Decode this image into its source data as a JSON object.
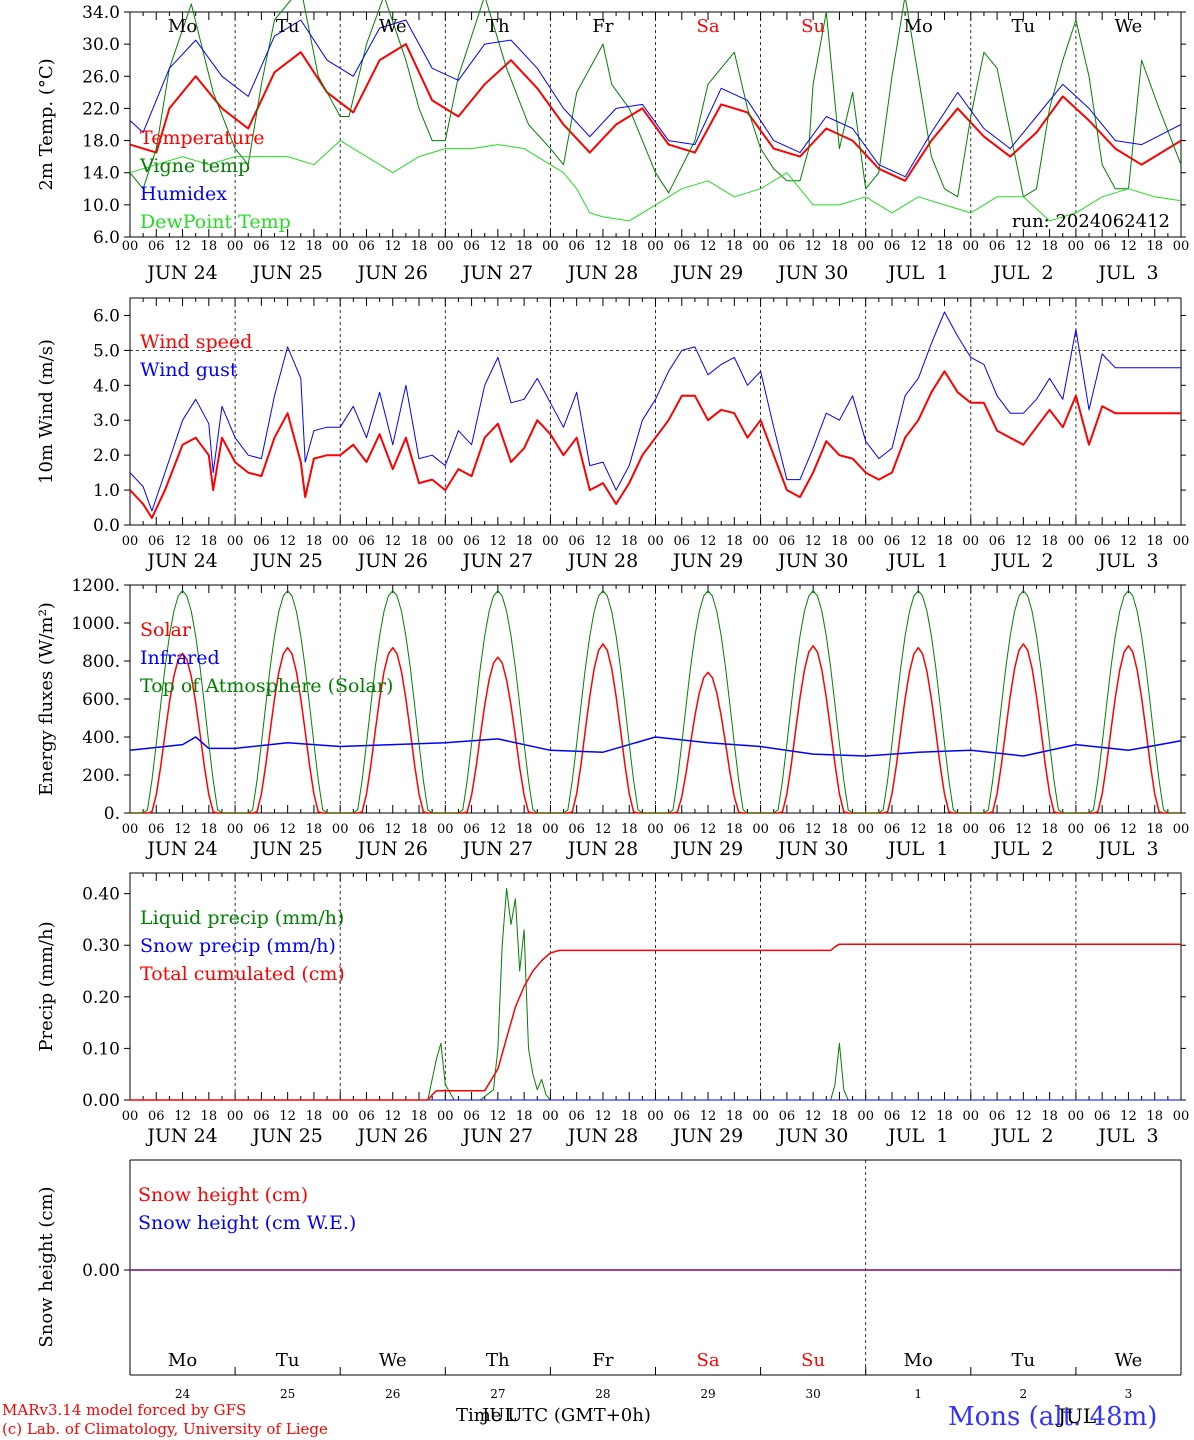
{
  "colors": {
    "red": "#ff0000",
    "green": "#008000",
    "lightgreen": "#22dd22",
    "blue": "#0000ff",
    "purple": "#800080",
    "title_blue": "#3333ff",
    "black": "#000000"
  },
  "days": {
    "dates": [
      "JUN 24",
      "JUN 25",
      "JUN 26",
      "JUN 27",
      "JUN 28",
      "JUN 29",
      "JUN 30",
      "JUL  1",
      "JUL  2",
      "JUL  3"
    ],
    "weekdays": [
      "Mo",
      "Tu",
      "We",
      "Th",
      "Fr",
      "Sa",
      "Su",
      "Mo",
      "Tu",
      "We"
    ],
    "weekend": [
      false,
      false,
      false,
      false,
      false,
      true,
      true,
      false,
      false,
      false
    ],
    "hour_labels": [
      "00",
      "06",
      "12",
      "18"
    ],
    "end_label": "00",
    "bottom_numbers": [
      "24",
      "25",
      "26",
      "27",
      "28",
      "29",
      "30",
      "1",
      "2",
      "3"
    ]
  },
  "footer": {
    "model_line": "MARv3.14 model forced by GFS",
    "credit_line": "(c) Lab. of Climatology, University of Liege",
    "axis_title": "Time UTC (GMT+0h)",
    "overprint": "JUL",
    "station": "Mons (alt. 48m)"
  },
  "chart_data": [
    {
      "type": "line",
      "id": "temperature",
      "ylabel": "2m Temp. (°C)",
      "ylim": [
        6,
        34
      ],
      "yticks": [
        "6.0",
        "10.0",
        "14.0",
        "18.0",
        "22.0",
        "26.0",
        "30.0",
        "34.0"
      ],
      "run_label": "run: 2024062412",
      "x_unit": "hours since JUN 24 00 UTC",
      "series": [
        {
          "name": "Temperature",
          "color": "#ff0000",
          "width": 2,
          "x": [
            0,
            6,
            9,
            15,
            21,
            27,
            33,
            39,
            45,
            51,
            57,
            63,
            69,
            75,
            81,
            87,
            93,
            99,
            105,
            111,
            117,
            123,
            129,
            135,
            141,
            147,
            153,
            159,
            165,
            171,
            177,
            183,
            189,
            195,
            201,
            207,
            213,
            219,
            225,
            231,
            240
          ],
          "y": [
            17.5,
            16.5,
            22,
            26,
            22,
            19.5,
            26.5,
            29,
            24,
            21.5,
            28,
            30,
            23,
            21,
            25,
            28,
            24.5,
            20,
            16.5,
            20,
            22,
            17.5,
            16.5,
            22.5,
            21.5,
            17,
            16,
            19.5,
            18,
            14.5,
            13,
            18,
            22,
            18.5,
            16,
            19,
            23.5,
            20.5,
            17,
            15,
            18
          ]
        },
        {
          "name": "Vigne temp",
          "color": "#008000",
          "width": 1,
          "x": [
            0,
            3,
            6,
            9,
            14,
            19,
            24,
            27,
            30,
            33,
            39,
            43,
            48,
            50,
            54,
            58,
            63,
            66,
            69,
            72,
            75,
            78,
            81,
            86,
            91,
            96,
            99,
            102,
            108,
            110,
            114,
            117,
            120,
            123,
            129,
            132,
            138,
            141,
            144,
            147,
            150,
            153,
            155,
            156,
            159,
            162,
            165,
            168,
            171,
            174,
            177,
            180,
            183,
            186,
            189,
            192,
            195,
            198,
            204,
            207,
            210,
            213,
            216,
            219,
            222,
            225,
            228,
            231,
            235,
            240
          ],
          "y": [
            14,
            12,
            17,
            27,
            35,
            24,
            17,
            15,
            25,
            33,
            37,
            26,
            21,
            21,
            30,
            36,
            28,
            22,
            18,
            18,
            26,
            31,
            36,
            27,
            20,
            17,
            15,
            24,
            30,
            25,
            22,
            18,
            14,
            11.5,
            18,
            25,
            29,
            22,
            17,
            14.5,
            13,
            13,
            17,
            25,
            34,
            17,
            24,
            12,
            14,
            26,
            36,
            26,
            16,
            12,
            11,
            21,
            29,
            27,
            11,
            12,
            22,
            28,
            33,
            26,
            15,
            12,
            12,
            28,
            22,
            15
          ]
        },
        {
          "name": "Humidex",
          "color": "#0000ff",
          "width": 1,
          "x": [
            0,
            3,
            9,
            15,
            21,
            27,
            33,
            39,
            45,
            51,
            57,
            63,
            69,
            75,
            81,
            87,
            93,
            99,
            105,
            111,
            117,
            123,
            129,
            135,
            141,
            147,
            153,
            159,
            165,
            171,
            177,
            183,
            189,
            195,
            201,
            207,
            213,
            219,
            225,
            231,
            240
          ],
          "y": [
            20.5,
            19,
            27,
            30.5,
            26,
            23.5,
            31,
            33,
            28,
            26,
            32,
            33,
            27,
            25.5,
            30,
            30.5,
            27,
            22,
            18.5,
            22,
            22.5,
            18,
            17.5,
            24.5,
            23,
            18,
            16.5,
            21,
            19.5,
            15,
            13.5,
            19,
            24,
            19.5,
            17,
            21,
            25,
            22,
            18,
            17.5,
            20
          ]
        },
        {
          "name": "DewPoint Temp",
          "color": "#22dd22",
          "width": 1,
          "x": [
            0,
            6,
            12,
            18,
            24,
            30,
            36,
            42,
            48,
            51,
            54,
            60,
            66,
            72,
            78,
            84,
            90,
            96,
            99,
            102,
            105,
            108,
            114,
            120,
            126,
            132,
            138,
            144,
            150,
            156,
            162,
            168,
            171,
            174,
            180,
            186,
            192,
            198,
            204,
            210,
            216,
            222,
            228,
            234,
            240
          ],
          "y": [
            14,
            15,
            16,
            15,
            16,
            16,
            16,
            15,
            18,
            17,
            16,
            14,
            16,
            17,
            17,
            17.5,
            17,
            15,
            14,
            12,
            9,
            8.5,
            8,
            10,
            12,
            13,
            11,
            12,
            14,
            10,
            10,
            11,
            10,
            9,
            11,
            10,
            9,
            11,
            11,
            8,
            9,
            11,
            12,
            11,
            10.5
          ]
        }
      ]
    },
    {
      "type": "line",
      "id": "wind",
      "ylabel": "10m Wind (m/s)",
      "ylim": [
        0,
        6.5
      ],
      "yticks": [
        "0.0",
        "1.0",
        "2.0",
        "3.0",
        "4.0",
        "5.0",
        "6.0"
      ],
      "reference_line": 5.0,
      "x_unit": "hours since JUN 24 00 UTC",
      "series": [
        {
          "name": "Wind speed",
          "color": "#ff0000",
          "width": 2,
          "x": [
            0,
            3,
            5,
            8,
            12,
            15,
            18,
            19,
            21,
            24,
            27,
            30,
            33,
            36,
            39,
            40,
            42,
            45,
            48,
            51,
            54,
            57,
            60,
            63,
            66,
            69,
            72,
            75,
            78,
            81,
            84,
            87,
            90,
            93,
            96,
            99,
            102,
            105,
            108,
            111,
            114,
            117,
            120,
            123,
            126,
            129,
            132,
            135,
            138,
            141,
            144,
            147,
            150,
            153,
            156,
            159,
            162,
            165,
            168,
            171,
            174,
            177,
            180,
            183,
            186,
            189,
            192,
            195,
            198,
            201,
            204,
            207,
            210,
            213,
            216,
            219,
            222,
            225,
            228,
            231,
            234,
            237,
            240
          ],
          "y": [
            1.0,
            0.6,
            0.2,
            1.0,
            2.3,
            2.5,
            2.0,
            1.0,
            2.5,
            1.8,
            1.5,
            1.4,
            2.5,
            3.2,
            1.8,
            0.8,
            1.9,
            2.0,
            2.0,
            2.3,
            1.8,
            2.6,
            1.6,
            2.5,
            1.2,
            1.3,
            1.0,
            1.6,
            1.4,
            2.5,
            2.9,
            1.8,
            2.2,
            3.0,
            2.6,
            2.0,
            2.5,
            1.0,
            1.2,
            0.6,
            1.2,
            2.0,
            2.5,
            3.0,
            3.7,
            3.7,
            3.0,
            3.3,
            3.2,
            2.5,
            3.0,
            2.0,
            1.0,
            0.8,
            1.5,
            2.4,
            2.0,
            1.9,
            1.5,
            1.3,
            1.5,
            2.5,
            3.0,
            3.8,
            4.4,
            3.8,
            3.5,
            3.5,
            2.7,
            2.5,
            2.3,
            2.8,
            3.3,
            2.8,
            3.7,
            2.3,
            3.4,
            3.2,
            3.2,
            3.2,
            3.2,
            3.2,
            3.2
          ]
        },
        {
          "name": "Wind gust",
          "color": "#0000ff",
          "width": 1,
          "x": [
            0,
            3,
            5,
            8,
            12,
            15,
            18,
            19,
            21,
            24,
            27,
            30,
            33,
            36,
            39,
            40,
            42,
            45,
            48,
            51,
            54,
            57,
            60,
            63,
            66,
            69,
            72,
            75,
            78,
            81,
            84,
            87,
            90,
            93,
            96,
            99,
            102,
            105,
            108,
            111,
            114,
            117,
            120,
            123,
            126,
            129,
            132,
            135,
            138,
            141,
            144,
            147,
            150,
            153,
            156,
            159,
            162,
            165,
            168,
            171,
            174,
            177,
            180,
            183,
            186,
            189,
            192,
            195,
            198,
            201,
            204,
            207,
            210,
            213,
            216,
            219,
            222,
            225,
            228,
            231,
            234,
            237,
            240
          ],
          "y": [
            1.5,
            1.1,
            0.4,
            1.5,
            3.0,
            3.6,
            2.9,
            1.5,
            3.4,
            2.5,
            2.0,
            1.9,
            3.7,
            5.1,
            4.2,
            1.8,
            2.7,
            2.8,
            2.8,
            3.4,
            2.5,
            3.8,
            2.3,
            4.0,
            1.9,
            2.0,
            1.7,
            2.7,
            2.3,
            4.0,
            4.8,
            3.5,
            3.6,
            4.2,
            3.5,
            2.8,
            3.8,
            1.7,
            1.8,
            1.0,
            1.7,
            3.0,
            3.6,
            4.4,
            5.0,
            5.1,
            4.3,
            4.6,
            4.8,
            4.0,
            4.4,
            2.8,
            1.3,
            1.3,
            2.2,
            3.2,
            3.0,
            3.7,
            2.4,
            1.9,
            2.2,
            3.7,
            4.2,
            5.2,
            6.1,
            5.4,
            4.8,
            4.6,
            3.7,
            3.2,
            3.2,
            3.6,
            4.2,
            3.6,
            5.6,
            3.3,
            4.9,
            4.5,
            4.5,
            4.5,
            4.5,
            4.5,
            4.5
          ]
        }
      ]
    },
    {
      "type": "line",
      "id": "energy",
      "ylabel": "Energy fluxes (W/m²)",
      "ylim": [
        0,
        1200
      ],
      "yticks": [
        "0.",
        "200.",
        "400.",
        "600.",
        "800.",
        "1000.",
        "1200."
      ],
      "x_unit": "hours since JUN 24 00 UTC",
      "daily_peaks_solar": [
        840,
        870,
        870,
        820,
        890,
        740,
        880,
        870,
        890,
        880
      ],
      "toa_peak": 1170,
      "series": [
        {
          "name": "Solar",
          "color": "#ff0000",
          "width": 1.5
        },
        {
          "name": "Infrared",
          "color": "#0000ff",
          "width": 1.5,
          "x": [
            0,
            12,
            15,
            18,
            24,
            36,
            42,
            48,
            60,
            72,
            84,
            96,
            108,
            120,
            132,
            144,
            156,
            168,
            180,
            192,
            204,
            216,
            228,
            240
          ],
          "y": [
            330,
            360,
            400,
            340,
            340,
            370,
            360,
            350,
            360,
            370,
            390,
            330,
            320,
            400,
            370,
            350,
            310,
            300,
            320,
            330,
            300,
            360,
            330,
            380
          ]
        },
        {
          "name": "Top of Atmosphere (Solar)",
          "color": "#008000",
          "width": 1
        }
      ]
    },
    {
      "type": "line",
      "id": "precip",
      "ylabel": "Precip (mm/h)",
      "ylim": [
        0,
        0.44
      ],
      "yticks": [
        "0.00",
        "0.10",
        "0.20",
        "0.30",
        "0.40"
      ],
      "x_unit": "hours since JUN 24 00 UTC",
      "series": [
        {
          "name": "Liquid precip (mm/h)",
          "color": "#008000",
          "width": 1,
          "x": [
            0,
            68,
            70,
            71,
            72,
            74,
            75,
            76,
            80,
            83,
            84,
            85,
            86,
            87,
            88,
            89,
            90,
            91,
            92,
            93,
            94,
            95,
            96,
            97,
            98,
            144,
            160,
            161,
            162,
            163,
            164,
            240
          ],
          "y": [
            0,
            0,
            0.08,
            0.11,
            0.03,
            0,
            0,
            0,
            0,
            0.02,
            0.1,
            0.3,
            0.41,
            0.34,
            0.39,
            0.25,
            0.33,
            0.1,
            0.05,
            0.02,
            0.04,
            0.01,
            0,
            0,
            0,
            0,
            0,
            0.03,
            0.11,
            0.02,
            0,
            0
          ]
        },
        {
          "name": "Snow precip (mm/h)",
          "color": "#0000ff",
          "width": 1,
          "x": [
            0,
            240
          ],
          "y": [
            0,
            0
          ]
        },
        {
          "name": "Total cumulated (cm)",
          "color": "#ff0000",
          "width": 1.5,
          "x": [
            0,
            68,
            69,
            70,
            72,
            81,
            84,
            86,
            88,
            90,
            92,
            94,
            96,
            98,
            100,
            160,
            161,
            162,
            240
          ],
          "y": [
            0,
            0,
            0.01,
            0.018,
            0.018,
            0.018,
            0.06,
            0.12,
            0.18,
            0.22,
            0.25,
            0.27,
            0.285,
            0.29,
            0.29,
            0.29,
            0.297,
            0.302,
            0.302
          ]
        }
      ]
    },
    {
      "type": "line",
      "id": "snow",
      "ylabel": "Snow height (cm)",
      "yticks": [
        "0.00"
      ],
      "x_unit": "hours since JUN 24 00 UTC",
      "series": [
        {
          "name": "Snow height (cm)",
          "color": "#ff0000",
          "x": [
            0,
            240
          ],
          "y": [
            0,
            0
          ]
        },
        {
          "name": "Snow height (cm W.E.)",
          "color": "#0000ff",
          "x": [
            0,
            240
          ],
          "y": [
            0,
            0
          ]
        }
      ]
    }
  ]
}
